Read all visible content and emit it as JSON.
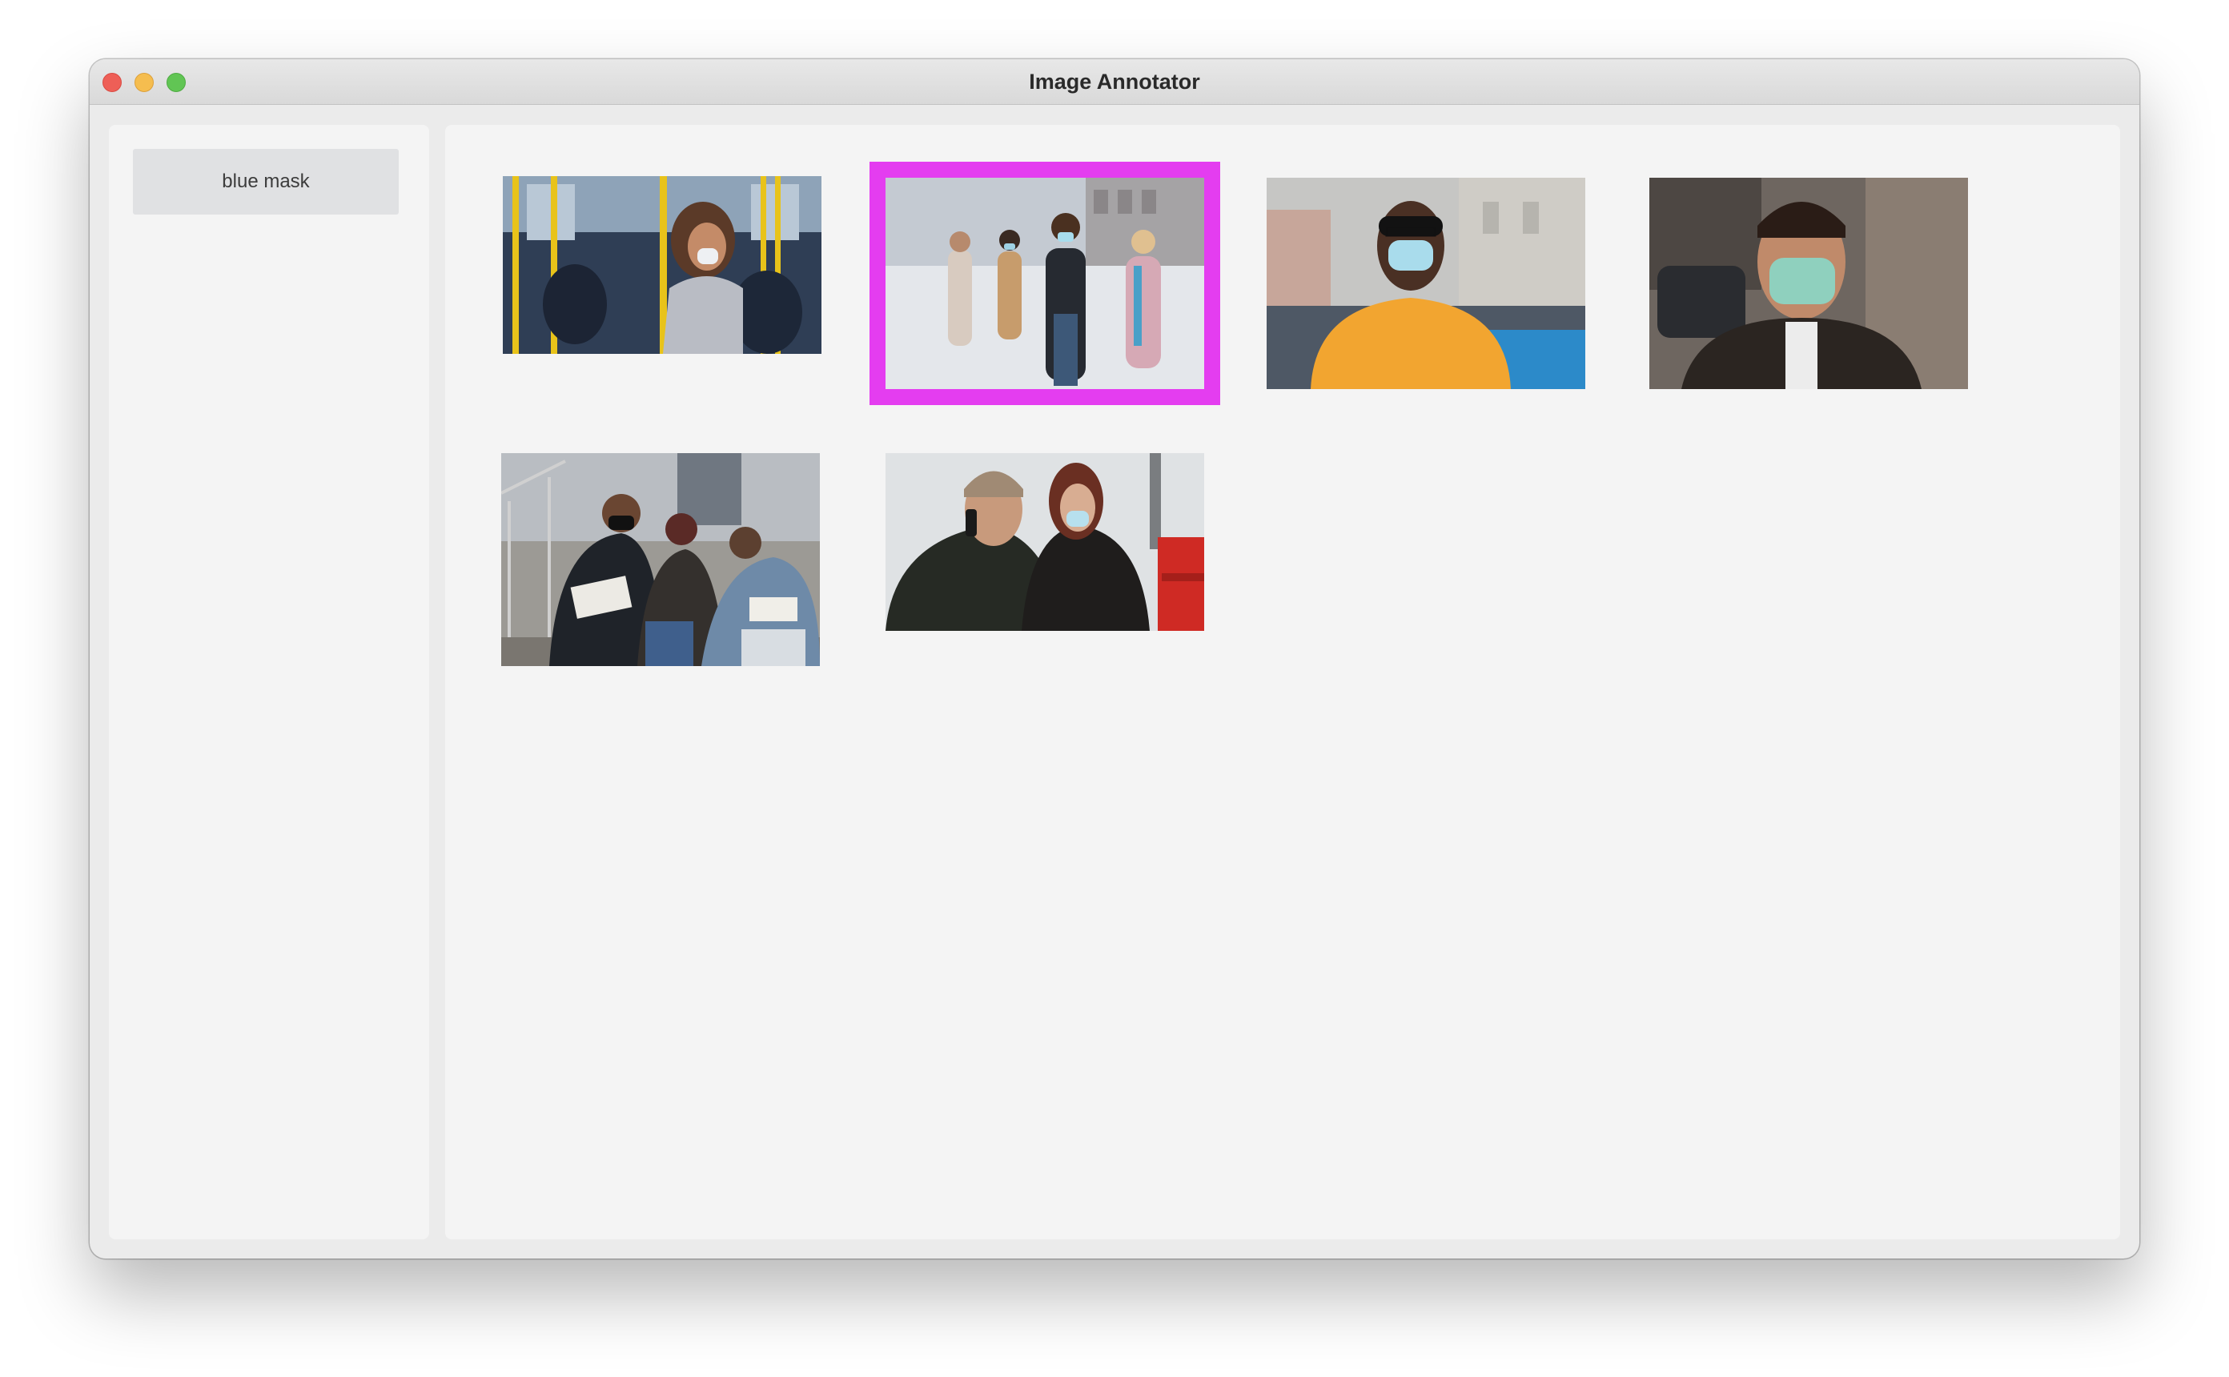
{
  "window": {
    "title": "Image Annotator"
  },
  "sidebar": {
    "labels": [
      {
        "label": "blue mask"
      }
    ]
  },
  "gallery": {
    "selection_color": "#e43df0",
    "images": [
      {
        "icon": "photo-subway-woman-mask",
        "selected": false
      },
      {
        "icon": "photo-group-walking-street-masks",
        "selected": true
      },
      {
        "icon": "photo-man-yellow-shirt-mask",
        "selected": false
      },
      {
        "icon": "photo-man-leather-jacket-mask",
        "selected": false
      },
      {
        "icon": "photo-group-sitting-stairs-masks",
        "selected": false
      },
      {
        "icon": "photo-couple-on-phone-masks",
        "selected": false
      }
    ]
  }
}
